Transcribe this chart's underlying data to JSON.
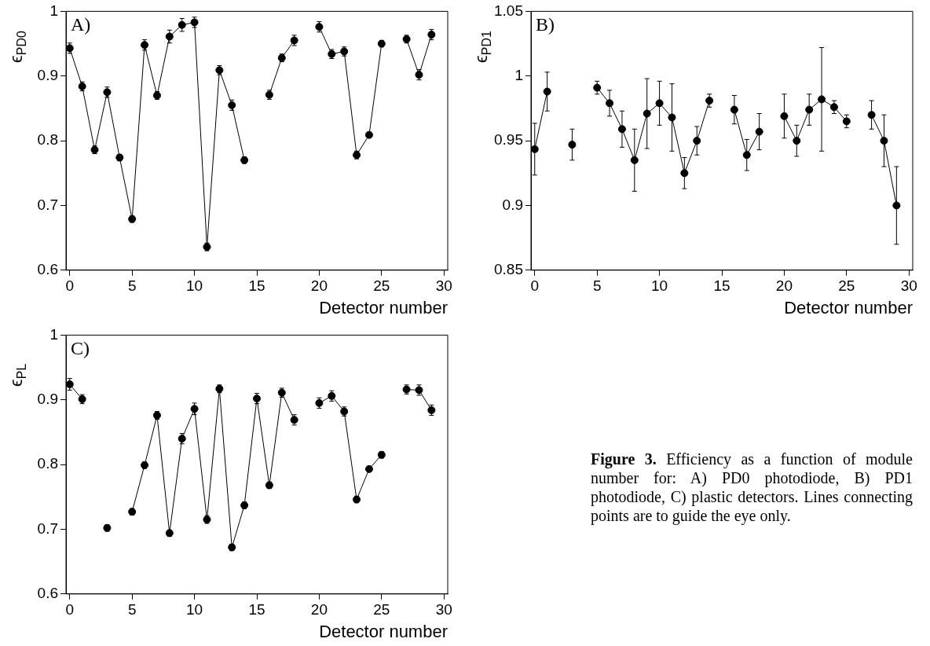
{
  "chart_data": [
    {
      "type": "line",
      "xlabel": "Detector number",
      "ylabel": "ϵ$_{PD0}$",
      "annotations": [
        "A)"
      ],
      "marker": "circle",
      "x": [
        0,
        1,
        2,
        3,
        4,
        5,
        6,
        7,
        8,
        9,
        10,
        11,
        12,
        13,
        14,
        15,
        16,
        17,
        18,
        19,
        20,
        21,
        22,
        23,
        24,
        25,
        26,
        27,
        28,
        29
      ],
      "xlim": [
        -0.3,
        30.3
      ],
      "xticks": [
        0,
        5,
        10,
        15,
        20,
        25,
        30
      ],
      "ylim": [
        0.6,
        1
      ],
      "yticks": [
        0.6,
        0.7,
        0.8,
        0.9,
        1
      ],
      "series": [
        {
          "color": "#000000",
          "values": [
            0.943,
            0.884,
            0.786,
            0.875,
            0.774,
            0.679,
            0.948,
            0.87,
            0.961,
            0.979,
            0.983,
            0.636,
            0.909,
            0.855,
            0.77,
            null,
            0.871,
            0.928,
            0.955,
            null,
            0.976,
            0.934,
            0.938,
            0.778,
            0.809,
            0.95,
            null,
            0.957,
            0.902,
            0.964
          ],
          "errors": [
            0.008,
            0.007,
            0.006,
            0.008,
            0.005,
            0.005,
            0.008,
            0.006,
            0.01,
            0.01,
            0.008,
            0.006,
            0.007,
            0.008,
            0.005,
            null,
            0.007,
            0.006,
            0.008,
            null,
            0.008,
            0.007,
            0.007,
            0.006,
            0.004,
            0.005,
            null,
            0.006,
            0.008,
            0.008
          ]
        }
      ]
    },
    {
      "type": "line",
      "xlabel": "Detector number",
      "ylabel": "ϵ$_{PD1}$",
      "annotations": [
        "B)"
      ],
      "marker": "circle",
      "x": [
        0,
        1,
        2,
        3,
        4,
        5,
        6,
        7,
        8,
        9,
        10,
        11,
        12,
        13,
        14,
        15,
        16,
        17,
        18,
        19,
        20,
        21,
        22,
        23,
        24,
        25,
        26,
        27,
        28,
        29
      ],
      "xlim": [
        -0.3,
        30.3
      ],
      "xticks": [
        0,
        5,
        10,
        15,
        20,
        25,
        30
      ],
      "ylim": [
        0.85,
        1.05
      ],
      "yticks": [
        0.85,
        0.9,
        0.95,
        1,
        1.05
      ],
      "series": [
        {
          "color": "#000000",
          "values": [
            0.9435,
            0.988,
            null,
            0.947,
            null,
            0.991,
            0.979,
            0.959,
            0.935,
            0.971,
            0.979,
            0.968,
            0.925,
            0.95,
            0.981,
            null,
            0.974,
            0.939,
            0.957,
            null,
            0.969,
            0.95,
            0.974,
            0.982,
            0.976,
            0.965,
            null,
            0.97,
            0.95,
            0.9
          ],
          "errors": [
            0.02,
            0.015,
            null,
            0.012,
            null,
            0.005,
            0.01,
            0.014,
            0.024,
            0.027,
            0.017,
            0.026,
            0.012,
            0.011,
            0.005,
            null,
            0.011,
            0.012,
            0.014,
            null,
            0.017,
            0.012,
            0.012,
            0.04,
            0.005,
            0.005,
            null,
            0.011,
            0.02,
            0.03
          ]
        }
      ]
    },
    {
      "type": "line",
      "xlabel": "Detector number",
      "ylabel": "ϵ$_{PL}$",
      "annotations": [
        "C)"
      ],
      "marker": "circle",
      "x": [
        0,
        1,
        2,
        3,
        4,
        5,
        6,
        7,
        8,
        9,
        10,
        11,
        12,
        13,
        14,
        15,
        16,
        17,
        18,
        19,
        20,
        21,
        22,
        23,
        24,
        25,
        26,
        27,
        28,
        29
      ],
      "xlim": [
        -0.3,
        30.3
      ],
      "xticks": [
        0,
        5,
        10,
        15,
        20,
        25,
        30
      ],
      "ylim": [
        0.6,
        1
      ],
      "yticks": [
        0.6,
        0.7,
        0.8,
        0.9,
        1
      ],
      "series": [
        {
          "color": "#000000",
          "values": [
            0.924,
            0.901,
            null,
            0.702,
            null,
            0.727,
            0.799,
            0.876,
            0.694,
            0.84,
            0.886,
            0.715,
            0.917,
            0.672,
            0.737,
            0.902,
            0.768,
            0.911,
            0.869,
            null,
            0.895,
            0.906,
            0.882,
            0.746,
            0.793,
            0.815,
            null,
            0.916,
            0.915,
            0.884
          ],
          "errors": [
            0.009,
            0.007,
            null,
            0.005,
            null,
            0.005,
            0.005,
            0.006,
            0.005,
            0.008,
            0.009,
            0.006,
            0.006,
            0.005,
            0.005,
            0.008,
            0.005,
            0.007,
            0.008,
            null,
            0.008,
            0.008,
            0.007,
            0.005,
            0.004,
            0.005,
            null,
            0.007,
            0.008,
            0.008
          ]
        }
      ]
    },
    {
      "type": "other",
      "annotations": [
        "Figure 3.",
        "Efficiency as a function of module number for: A) PD0 photodiode, B) PD1 photodiode, C) plastic detectors. Lines connecting points are to guide the eye only."
      ]
    }
  ]
}
